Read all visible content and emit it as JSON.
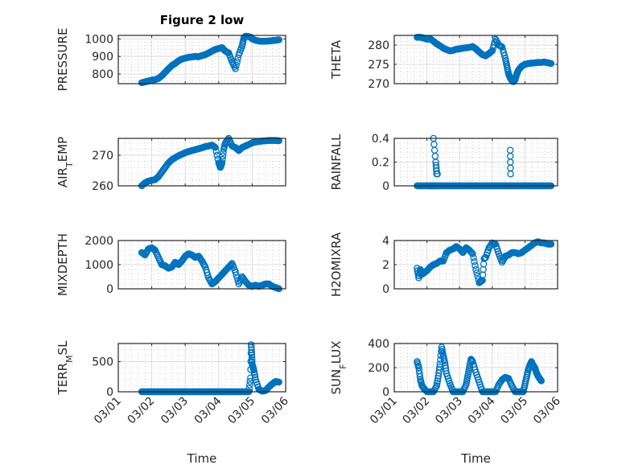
{
  "chart_data": {
    "type": "scatter",
    "title": "Figure 2 low",
    "marker": "open-circle",
    "color": "#0072BD",
    "grid": "major+minor",
    "x_tick_labels": [
      "03/01",
      "03/02",
      "03/03",
      "03/04",
      "03/05",
      "03/06"
    ],
    "x_range_days": [
      0,
      5
    ],
    "xlabel": "Time",
    "subplots": [
      {
        "id": "pressure",
        "ylabel": "PRESSURE",
        "ylabel_sub": "",
        "ylim": [
          745,
          1020
        ],
        "yticks": [
          800,
          900,
          1000
        ],
        "x": [
          0.7,
          0.8,
          0.9,
          1.0,
          1.1,
          1.2,
          1.3,
          1.4,
          1.5,
          1.6,
          1.7,
          1.8,
          1.9,
          2.0,
          2.1,
          2.2,
          2.3,
          2.4,
          2.5,
          2.6,
          2.7,
          2.8,
          2.9,
          3.0,
          3.1,
          3.2,
          3.3,
          3.4,
          3.5,
          3.6,
          3.7,
          3.75,
          3.8,
          3.85,
          3.9,
          3.95,
          4.0,
          4.1,
          4.2,
          4.3,
          4.4,
          4.5,
          4.6,
          4.7,
          4.8
        ],
        "values": [
          750,
          755,
          760,
          765,
          768,
          775,
          790,
          810,
          830,
          848,
          860,
          875,
          885,
          890,
          895,
          897,
          900,
          898,
          905,
          910,
          920,
          930,
          940,
          945,
          950,
          930,
          920,
          870,
          830,
          910,
          960,
          1005,
          1015,
          1015,
          1012,
          1010,
          1000,
          992,
          988,
          986,
          987,
          988,
          990,
          992,
          995
        ]
      },
      {
        "id": "theta",
        "ylabel": "THETA",
        "ylabel_sub": "",
        "ylim": [
          270,
          282.5
        ],
        "yticks": [
          270,
          275,
          280
        ],
        "x": [
          0.7,
          0.8,
          0.9,
          1.0,
          1.1,
          1.2,
          1.3,
          1.4,
          1.5,
          1.6,
          1.7,
          1.8,
          1.9,
          2.0,
          2.1,
          2.2,
          2.3,
          2.4,
          2.5,
          2.6,
          2.7,
          2.8,
          2.9,
          3.0,
          3.1,
          3.2,
          3.3,
          3.4,
          3.45,
          3.5,
          3.55,
          3.6,
          3.65,
          3.7,
          3.75,
          3.8,
          3.85,
          3.9,
          4.0,
          4.1,
          4.2,
          4.3,
          4.4,
          4.5,
          4.6,
          4.7,
          4.8
        ],
        "values": [
          282.0,
          282.0,
          281.8,
          281.5,
          281.6,
          281.0,
          280.3,
          279.8,
          279.2,
          278.8,
          278.5,
          278.6,
          278.9,
          279.0,
          279.2,
          279.3,
          279.4,
          279.6,
          279.0,
          278.2,
          277.5,
          277.2,
          277.8,
          278.5,
          281.5,
          280.0,
          279.5,
          276.5,
          274.5,
          272.5,
          271.5,
          270.8,
          270.5,
          271.0,
          272.5,
          273.5,
          274.0,
          274.5,
          275.0,
          275.2,
          275.3,
          275.4,
          275.5,
          275.5,
          275.6,
          275.4,
          275.2
        ]
      },
      {
        "id": "air_temp",
        "ylabel": "AIR",
        "ylabel_sub": "T",
        "ylabel_suffix": "EMP",
        "ylim": [
          260,
          275.5
        ],
        "yticks": [
          260,
          270
        ],
        "x": [
          0.7,
          0.8,
          0.9,
          1.0,
          1.1,
          1.2,
          1.3,
          1.4,
          1.5,
          1.6,
          1.7,
          1.8,
          1.9,
          2.0,
          2.1,
          2.2,
          2.3,
          2.4,
          2.5,
          2.6,
          2.7,
          2.8,
          2.9,
          3.0,
          3.05,
          3.1,
          3.15,
          3.2,
          3.3,
          3.4,
          3.5,
          3.6,
          3.7,
          3.8,
          3.9,
          4.0,
          4.1,
          4.2,
          4.3,
          4.4,
          4.5,
          4.6,
          4.7,
          4.8
        ],
        "values": [
          260,
          261,
          261.5,
          261.8,
          262,
          263,
          264.5,
          266,
          267.5,
          268.5,
          269.2,
          269.8,
          270.3,
          270.8,
          271.2,
          271.5,
          271.8,
          272.1,
          272.4,
          272.8,
          273,
          273.3,
          272.5,
          267.5,
          266,
          267.5,
          272,
          274,
          275.5,
          273,
          272.5,
          271.5,
          272.5,
          273,
          273.5,
          274,
          274.3,
          274.5,
          274.6,
          274.7,
          274.8,
          274.8,
          274.8,
          274.7
        ]
      },
      {
        "id": "rainfall",
        "ylabel": "RAINFALL",
        "ylabel_sub": "",
        "ylim": [
          0,
          0.4
        ],
        "yticks": [
          0,
          0.2,
          0.4
        ],
        "x": [
          0.7,
          0.8,
          0.9,
          1.0,
          1.1,
          1.15,
          1.2,
          1.25,
          1.3,
          1.4,
          1.5,
          1.6,
          1.7,
          1.8,
          1.9,
          2.0,
          2.1,
          2.2,
          2.3,
          2.4,
          2.5,
          2.6,
          2.7,
          2.8,
          2.9,
          3.0,
          3.1,
          3.2,
          3.3,
          3.4,
          3.5,
          3.6,
          3.7,
          3.8,
          3.9,
          4.0,
          4.1,
          4.2,
          4.3,
          4.4,
          4.5,
          4.6,
          4.7,
          4.8,
          1.2,
          1.27,
          1.3,
          1.32,
          3.55,
          3.56
        ],
        "values": [
          0,
          0,
          0,
          0,
          0,
          0,
          0,
          0,
          0,
          0,
          0,
          0,
          0,
          0,
          0,
          0,
          0,
          0,
          0,
          0,
          0,
          0,
          0,
          0,
          0,
          0,
          0,
          0,
          0,
          0,
          0,
          0,
          0,
          0,
          0,
          0,
          0,
          0,
          0,
          0,
          0,
          0,
          0,
          0,
          0.4,
          0.2,
          0.1,
          0.1,
          0.3,
          0.1
        ]
      },
      {
        "id": "mixdepth",
        "ylabel": "MIXDEPTH",
        "ylabel_sub": "",
        "ylim": [
          0,
          2000
        ],
        "yticks": [
          0,
          1000,
          2000
        ],
        "x": [
          0.7,
          0.8,
          0.9,
          1.0,
          1.1,
          1.2,
          1.3,
          1.4,
          1.5,
          1.6,
          1.7,
          1.8,
          1.9,
          2.0,
          2.1,
          2.2,
          2.3,
          2.4,
          2.5,
          2.6,
          2.7,
          2.8,
          2.9,
          3.0,
          3.1,
          3.2,
          3.3,
          3.4,
          3.5,
          3.6,
          3.7,
          3.8,
          3.9,
          4.0,
          4.1,
          4.2,
          4.3,
          4.4,
          4.5,
          4.6,
          4.7,
          4.8
        ],
        "values": [
          1500,
          1400,
          1650,
          1700,
          1600,
          1300,
          1000,
          950,
          850,
          900,
          1100,
          1000,
          1150,
          1350,
          1450,
          1400,
          1300,
          1350,
          1150,
          900,
          450,
          200,
          300,
          450,
          600,
          750,
          900,
          1050,
          700,
          200,
          500,
          300,
          150,
          100,
          150,
          100,
          150,
          200,
          200,
          100,
          50,
          0
        ]
      },
      {
        "id": "h2omixra",
        "ylabel": "H2OMIXRA",
        "ylabel_sub": "",
        "ylim": [
          0,
          4
        ],
        "yticks": [
          0,
          2,
          4
        ],
        "x": [
          0.7,
          0.75,
          0.8,
          0.85,
          0.9,
          1.0,
          1.1,
          1.2,
          1.3,
          1.4,
          1.5,
          1.6,
          1.7,
          1.8,
          1.9,
          2.0,
          2.1,
          2.2,
          2.3,
          2.4,
          2.5,
          2.6,
          2.7,
          2.75,
          2.8,
          2.9,
          3.0,
          3.1,
          3.2,
          3.3,
          3.4,
          3.5,
          3.6,
          3.7,
          3.8,
          3.9,
          4.0,
          4.1,
          4.2,
          4.3,
          4.4,
          4.5,
          4.6,
          4.7,
          4.8
        ],
        "values": [
          1.7,
          0.9,
          1.6,
          1.2,
          1.3,
          1.5,
          1.8,
          2.0,
          2.1,
          2.3,
          2.3,
          3.0,
          3.2,
          3.3,
          3.5,
          3.3,
          3.0,
          3.4,
          3.2,
          2.9,
          1.6,
          0.5,
          0.7,
          2.5,
          2.6,
          3.4,
          3.8,
          3.7,
          2.9,
          2.2,
          2.7,
          2.8,
          3.0,
          3.0,
          2.9,
          3.0,
          3.2,
          3.4,
          3.6,
          3.8,
          3.9,
          3.8,
          3.8,
          3.7,
          3.7
        ]
      },
      {
        "id": "terr_msl",
        "ylabel": "TERR",
        "ylabel_sub": "M",
        "ylabel_suffix": "SL",
        "ylim": [
          0,
          800
        ],
        "yticks": [
          0,
          500
        ],
        "x": [
          0.7,
          0.8,
          0.9,
          1.0,
          1.1,
          1.2,
          1.3,
          1.4,
          1.5,
          1.6,
          1.7,
          1.8,
          1.9,
          2.0,
          2.1,
          2.2,
          2.3,
          2.4,
          2.5,
          2.6,
          2.7,
          2.8,
          2.9,
          3.0,
          3.1,
          3.2,
          3.3,
          3.4,
          3.5,
          3.6,
          3.7,
          3.8,
          3.9,
          3.95,
          3.97,
          3.99,
          4.0,
          4.02,
          4.05,
          4.1,
          4.2,
          4.3,
          4.4,
          4.5,
          4.6,
          4.7,
          4.8
        ],
        "values": [
          0,
          0,
          0,
          0,
          0,
          0,
          0,
          0,
          0,
          0,
          0,
          0,
          0,
          0,
          0,
          0,
          0,
          0,
          0,
          0,
          0,
          0,
          0,
          0,
          0,
          0,
          0,
          0,
          0,
          0,
          0,
          0,
          0,
          230,
          780,
          610,
          450,
          420,
          360,
          200,
          40,
          10,
          20,
          80,
          130,
          170,
          160
        ]
      },
      {
        "id": "sun_flux",
        "ylabel": "SUN",
        "ylabel_sub": "F",
        "ylabel_suffix": "LUX",
        "ylim": [
          0,
          400
        ],
        "yticks": [
          0,
          200,
          400
        ],
        "x": [
          0.7,
          0.75,
          0.8,
          0.85,
          0.9,
          1.0,
          1.1,
          1.2,
          1.3,
          1.35,
          1.4,
          1.45,
          1.5,
          1.55,
          1.6,
          1.7,
          1.8,
          1.9,
          2.0,
          2.1,
          2.2,
          2.25,
          2.3,
          2.35,
          2.4,
          2.5,
          2.6,
          2.7,
          2.8,
          2.9,
          3.0,
          3.1,
          3.2,
          3.3,
          3.4,
          3.5,
          3.6,
          3.7,
          3.8,
          3.9,
          3.95,
          4.0,
          4.05,
          4.1,
          4.15,
          4.2,
          4.25,
          4.3,
          4.35,
          4.4,
          4.45,
          4.5
        ],
        "values": [
          250,
          200,
          100,
          50,
          30,
          0,
          0,
          0,
          50,
          130,
          230,
          370,
          300,
          240,
          150,
          70,
          0,
          0,
          0,
          0,
          60,
          130,
          200,
          270,
          250,
          160,
          80,
          0,
          0,
          0,
          0,
          0,
          60,
          100,
          120,
          110,
          50,
          0,
          0,
          0,
          0,
          60,
          120,
          180,
          220,
          250,
          220,
          200,
          160,
          130,
          110,
          90
        ]
      }
    ]
  }
}
